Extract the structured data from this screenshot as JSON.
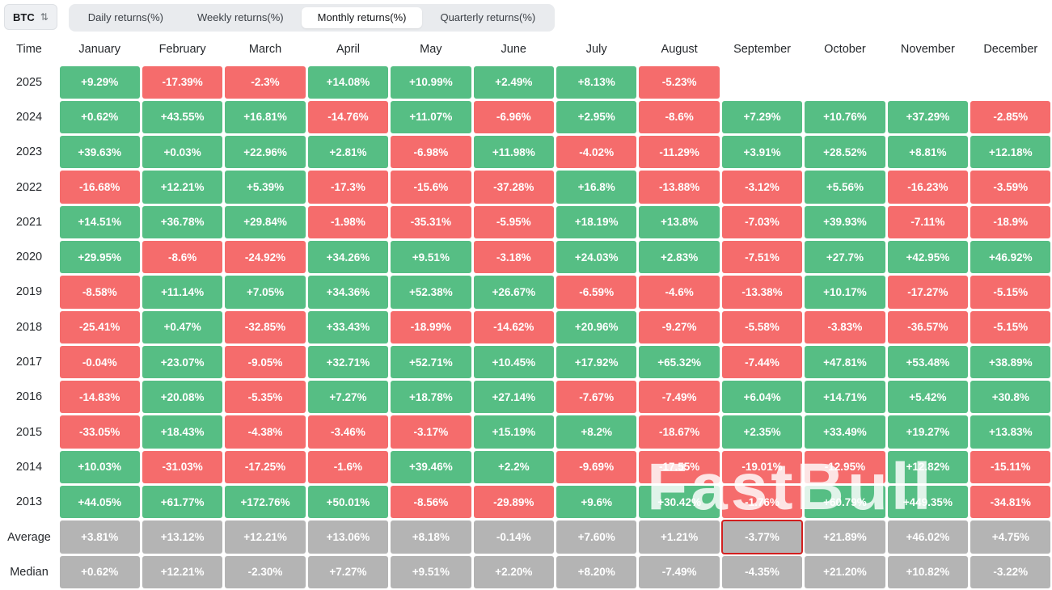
{
  "toolbar": {
    "symbol": "BTC",
    "icon_glyph": "⇅",
    "tabs": [
      {
        "label": "Daily returns(%)",
        "active": false
      },
      {
        "label": "Weekly returns(%)",
        "active": false
      },
      {
        "label": "Monthly returns(%)",
        "active": true
      },
      {
        "label": "Quarterly returns(%)",
        "active": false
      }
    ]
  },
  "table": {
    "time_header": "Time",
    "months": [
      "January",
      "February",
      "March",
      "April",
      "May",
      "June",
      "July",
      "August",
      "September",
      "October",
      "November",
      "December"
    ],
    "rows": [
      {
        "label": "2025",
        "type": "year",
        "values": [
          "+9.29%",
          "-17.39%",
          "-2.3%",
          "+14.08%",
          "+10.99%",
          "+2.49%",
          "+8.13%",
          "-5.23%",
          "",
          "",
          "",
          ""
        ]
      },
      {
        "label": "2024",
        "type": "year",
        "values": [
          "+0.62%",
          "+43.55%",
          "+16.81%",
          "-14.76%",
          "+11.07%",
          "-6.96%",
          "+2.95%",
          "-8.6%",
          "+7.29%",
          "+10.76%",
          "+37.29%",
          "-2.85%"
        ]
      },
      {
        "label": "2023",
        "type": "year",
        "values": [
          "+39.63%",
          "+0.03%",
          "+22.96%",
          "+2.81%",
          "-6.98%",
          "+11.98%",
          "-4.02%",
          "-11.29%",
          "+3.91%",
          "+28.52%",
          "+8.81%",
          "+12.18%"
        ]
      },
      {
        "label": "2022",
        "type": "year",
        "values": [
          "-16.68%",
          "+12.21%",
          "+5.39%",
          "-17.3%",
          "-15.6%",
          "-37.28%",
          "+16.8%",
          "-13.88%",
          "-3.12%",
          "+5.56%",
          "-16.23%",
          "-3.59%"
        ]
      },
      {
        "label": "2021",
        "type": "year",
        "values": [
          "+14.51%",
          "+36.78%",
          "+29.84%",
          "-1.98%",
          "-35.31%",
          "-5.95%",
          "+18.19%",
          "+13.8%",
          "-7.03%",
          "+39.93%",
          "-7.11%",
          "-18.9%"
        ]
      },
      {
        "label": "2020",
        "type": "year",
        "values": [
          "+29.95%",
          "-8.6%",
          "-24.92%",
          "+34.26%",
          "+9.51%",
          "-3.18%",
          "+24.03%",
          "+2.83%",
          "-7.51%",
          "+27.7%",
          "+42.95%",
          "+46.92%"
        ]
      },
      {
        "label": "2019",
        "type": "year",
        "values": [
          "-8.58%",
          "+11.14%",
          "+7.05%",
          "+34.36%",
          "+52.38%",
          "+26.67%",
          "-6.59%",
          "-4.6%",
          "-13.38%",
          "+10.17%",
          "-17.27%",
          "-5.15%"
        ]
      },
      {
        "label": "2018",
        "type": "year",
        "values": [
          "-25.41%",
          "+0.47%",
          "-32.85%",
          "+33.43%",
          "-18.99%",
          "-14.62%",
          "+20.96%",
          "-9.27%",
          "-5.58%",
          "-3.83%",
          "-36.57%",
          "-5.15%"
        ]
      },
      {
        "label": "2017",
        "type": "year",
        "values": [
          "-0.04%",
          "+23.07%",
          "-9.05%",
          "+32.71%",
          "+52.71%",
          "+10.45%",
          "+17.92%",
          "+65.32%",
          "-7.44%",
          "+47.81%",
          "+53.48%",
          "+38.89%"
        ]
      },
      {
        "label": "2016",
        "type": "year",
        "values": [
          "-14.83%",
          "+20.08%",
          "-5.35%",
          "+7.27%",
          "+18.78%",
          "+27.14%",
          "-7.67%",
          "-7.49%",
          "+6.04%",
          "+14.71%",
          "+5.42%",
          "+30.8%"
        ]
      },
      {
        "label": "2015",
        "type": "year",
        "values": [
          "-33.05%",
          "+18.43%",
          "-4.38%",
          "-3.46%",
          "-3.17%",
          "+15.19%",
          "+8.2%",
          "-18.67%",
          "+2.35%",
          "+33.49%",
          "+19.27%",
          "+13.83%"
        ]
      },
      {
        "label": "2014",
        "type": "year",
        "values": [
          "+10.03%",
          "-31.03%",
          "-17.25%",
          "-1.6%",
          "+39.46%",
          "+2.2%",
          "-9.69%",
          "-17.55%",
          "-19.01%",
          "-12.95%",
          "+12.82%",
          "-15.11%"
        ]
      },
      {
        "label": "2013",
        "type": "year",
        "values": [
          "+44.05%",
          "+61.77%",
          "+172.76%",
          "+50.01%",
          "-8.56%",
          "-29.89%",
          "+9.6%",
          "+30.42%",
          "-1.76%",
          "+60.79%",
          "+449.35%",
          "-34.81%"
        ]
      },
      {
        "label": "Average",
        "type": "stat",
        "values": [
          "+3.81%",
          "+13.12%",
          "+12.21%",
          "+13.06%",
          "+8.18%",
          "-0.14%",
          "+7.60%",
          "+1.21%",
          "-3.77%",
          "+21.89%",
          "+46.02%",
          "+4.75%"
        ]
      },
      {
        "label": "Median",
        "type": "stat",
        "values": [
          "+0.62%",
          "+12.21%",
          "-2.30%",
          "+7.27%",
          "+9.51%",
          "+2.20%",
          "+8.20%",
          "-7.49%",
          "-4.35%",
          "+21.20%",
          "+10.82%",
          "-3.22%"
        ]
      }
    ],
    "highlight": {
      "row_label": "Average",
      "month_index": 8
    }
  },
  "colors": {
    "positive": "#56BE84",
    "negative": "#F56C6C",
    "stat": "#B4B4B4",
    "highlight_border": "#D21F1F"
  },
  "watermark": {
    "text": "FastBull"
  }
}
